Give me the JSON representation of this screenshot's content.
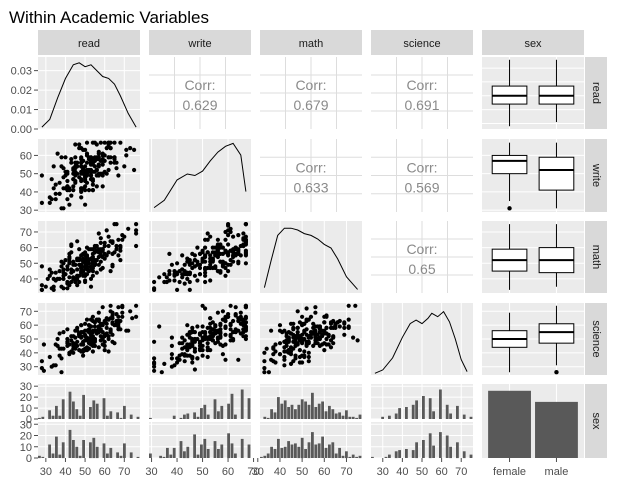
{
  "title": "Within Academic Variables",
  "variables": [
    "read",
    "write",
    "math",
    "science",
    "sex"
  ],
  "colors": {
    "panel_background": "#ebebeb",
    "grid_major": "#ffffff",
    "strip_background": "#d9d9d9",
    "strip_text": "#1a1a1a",
    "corr_text": "#8a8a8a",
    "mark": "#000000",
    "bar_fill": "#595959",
    "axis_text": "#4d4d4d"
  },
  "chart_data": {
    "type": "scatter",
    "title": "Within Academic Variables",
    "panels": {
      "read_density": {
        "type": "line",
        "x": [
          28,
          32,
          36,
          40,
          44,
          47,
          50,
          53,
          56,
          59,
          62,
          65,
          68,
          72,
          76
        ],
        "y": [
          0.001,
          0.005,
          0.016,
          0.026,
          0.033,
          0.034,
          0.032,
          0.033,
          0.03,
          0.027,
          0.026,
          0.023,
          0.017,
          0.008,
          0.001
        ],
        "ylim": [
          0,
          0.037
        ],
        "yticks": [
          "0.00",
          "0.01",
          "0.02",
          "0.03"
        ],
        "ytick_values": [
          0,
          0.01,
          0.02,
          0.03
        ]
      },
      "write_density": {
        "type": "line",
        "x": [
          31,
          35,
          40,
          44,
          47,
          50,
          53,
          56,
          59,
          62,
          65,
          67
        ],
        "y": [
          0.003,
          0.008,
          0.022,
          0.026,
          0.025,
          0.028,
          0.035,
          0.041,
          0.045,
          0.047,
          0.039,
          0.014
        ],
        "ylim": [
          0,
          0.05
        ]
      },
      "math_density": {
        "type": "line",
        "x": [
          33,
          36,
          39,
          42,
          45,
          48,
          51,
          54,
          57,
          60,
          63,
          66,
          70,
          75
        ],
        "y": [
          0.003,
          0.018,
          0.032,
          0.036,
          0.036,
          0.035,
          0.033,
          0.032,
          0.03,
          0.027,
          0.025,
          0.019,
          0.009,
          0.002
        ],
        "ylim": [
          0,
          0.04
        ]
      },
      "science_density": {
        "type": "line",
        "x": [
          26,
          30,
          35,
          40,
          44,
          47,
          50,
          53,
          55,
          58,
          61,
          64,
          67,
          70,
          73
        ],
        "y": [
          0.001,
          0.003,
          0.01,
          0.022,
          0.03,
          0.032,
          0.03,
          0.033,
          0.036,
          0.034,
          0.037,
          0.031,
          0.021,
          0.009,
          0.002
        ],
        "ylim": [
          0,
          0.042
        ]
      },
      "correlations": [
        {
          "row": "read",
          "col": "write",
          "label": "Corr:",
          "value": "0.629"
        },
        {
          "row": "read",
          "col": "math",
          "label": "Corr:",
          "value": "0.679"
        },
        {
          "row": "read",
          "col": "science",
          "label": "Corr:",
          "value": "0.691"
        },
        {
          "row": "write",
          "col": "math",
          "label": "Corr:",
          "value": "0.633"
        },
        {
          "row": "write",
          "col": "science",
          "label": "Corr:",
          "value": "0.569"
        },
        {
          "row": "math",
          "col": "science",
          "label": "Corr:",
          "value": "0.65"
        }
      ],
      "boxplots": {
        "categories": [
          "female",
          "male"
        ],
        "read": [
          {
            "min": 28,
            "q1": 44,
            "median": 50,
            "q3": 57,
            "max": 76,
            "outliers": []
          },
          {
            "min": 31,
            "q1": 44,
            "median": 50,
            "q3": 57,
            "max": 76,
            "outliers": []
          }
        ],
        "write": [
          {
            "min": 35,
            "q1": 50,
            "median": 57,
            "q3": 60,
            "max": 67,
            "outliers": [
              31
            ]
          },
          {
            "min": 31,
            "q1": 41,
            "median": 52,
            "q3": 59,
            "max": 67,
            "outliers": []
          }
        ],
        "math": [
          {
            "min": 33,
            "q1": 45,
            "median": 52,
            "q3": 59,
            "max": 75,
            "outliers": []
          },
          {
            "min": 35,
            "q1": 44,
            "median": 52,
            "q3": 60,
            "max": 75,
            "outliers": []
          }
        ],
        "science": [
          {
            "min": 26,
            "q1": 44,
            "median": 50,
            "q3": 56,
            "max": 69,
            "outliers": []
          },
          {
            "min": 31,
            "q1": 47,
            "median": 55,
            "q3": 61,
            "max": 74,
            "outliers": [
              26
            ]
          }
        ]
      },
      "sex_counts": {
        "categories": [
          "female",
          "male"
        ],
        "values": [
          109,
          91
        ],
        "ylim": [
          0,
          120
        ]
      },
      "histograms": {
        "yticks": [
          0,
          10,
          20,
          30
        ],
        "bins": 30,
        "read": {
          "female": [
            1,
            2,
            0,
            8,
            3,
            12,
            3,
            18,
            0,
            25,
            16,
            9,
            3,
            22,
            0,
            11,
            17,
            14,
            0,
            19,
            3,
            7,
            0,
            6,
            1,
            12,
            0,
            4,
            0,
            2
          ],
          "male": [
            2,
            1,
            0,
            12,
            4,
            19,
            3,
            14,
            0,
            25,
            16,
            10,
            2,
            16,
            0,
            14,
            18,
            10,
            0,
            13,
            4,
            9,
            0,
            5,
            2,
            13,
            0,
            5,
            0,
            1
          ]
        },
        "write": {
          "female": [
            1,
            0,
            0,
            0,
            0,
            0,
            0,
            3,
            0,
            1,
            4,
            5,
            0,
            6,
            2,
            10,
            13,
            4,
            0,
            18,
            7,
            12,
            0,
            14,
            23,
            4,
            0,
            27,
            0,
            19
          ],
          "male": [
            4,
            0,
            0,
            2,
            1,
            9,
            3,
            9,
            0,
            15,
            6,
            10,
            0,
            21,
            3,
            12,
            17,
            8,
            0,
            15,
            8,
            12,
            0,
            22,
            13,
            4,
            0,
            17,
            0,
            12
          ]
        },
        "math": {
          "female": [
            0,
            2,
            1,
            9,
            6,
            20,
            14,
            17,
            11,
            13,
            9,
            13,
            18,
            16,
            13,
            24,
            11,
            14,
            16,
            7,
            12,
            9,
            5,
            6,
            3,
            8,
            2,
            2,
            1,
            4
          ],
          "male": [
            1,
            2,
            4,
            10,
            8,
            17,
            9,
            10,
            15,
            12,
            13,
            10,
            18,
            8,
            14,
            23,
            12,
            13,
            19,
            9,
            12,
            14,
            4,
            9,
            2,
            6,
            1,
            3,
            1,
            2
          ]
        },
        "science": {
          "female": [
            0,
            0,
            0,
            2,
            0,
            3,
            0,
            5,
            10,
            0,
            11,
            0,
            13,
            17,
            0,
            21,
            0,
            19,
            7,
            0,
            27,
            0,
            13,
            5,
            0,
            12,
            0,
            4,
            0,
            2
          ],
          "male": [
            1,
            0,
            0,
            0,
            1,
            3,
            0,
            6,
            7,
            0,
            8,
            0,
            7,
            14,
            0,
            16,
            0,
            22,
            11,
            0,
            23,
            0,
            20,
            10,
            0,
            14,
            0,
            6,
            0,
            3
          ]
        }
      }
    },
    "axes": {
      "read": {
        "range": [
          26,
          78
        ],
        "ticks": [
          30,
          40,
          50,
          60,
          70
        ]
      },
      "write": {
        "range": [
          29,
          69
        ],
        "ticks": [
          30,
          40,
          50,
          60
        ]
      },
      "math": {
        "range": [
          31,
          77
        ],
        "ticks": [
          40,
          50,
          60,
          70
        ]
      },
      "science": {
        "range": [
          24,
          76
        ],
        "ticks": [
          30,
          40,
          50,
          60,
          70
        ]
      },
      "x_tick_labels": {
        "read": [
          "30",
          "40",
          "50",
          "60",
          "70"
        ],
        "write": [
          "30",
          "40",
          "50",
          "60",
          "70"
        ],
        "math": [
          "30",
          "40",
          "50",
          "60",
          "70"
        ],
        "science": [
          "30",
          "40",
          "50",
          "60",
          "70"
        ],
        "sex": [
          "female",
          "male"
        ]
      },
      "x_tick_values": {
        "read": [
          30,
          40,
          50,
          60,
          70
        ],
        "write": [
          30,
          40,
          50,
          60,
          70
        ],
        "math": [
          30,
          40,
          50,
          60,
          70
        ],
        "science": [
          30,
          40,
          50,
          60,
          70
        ]
      },
      "y_tick_labels": {
        "read": [
          "0.00",
          "0.01",
          "0.02",
          "0.03"
        ],
        "write": [
          "30",
          "40",
          "50",
          "60"
        ],
        "math": [
          "40",
          "50",
          "60",
          "70"
        ],
        "science": [
          "30",
          "40",
          "50",
          "60",
          "70"
        ],
        "sex_female": [
          "0",
          "10",
          "20",
          "30"
        ],
        "sex_male": [
          "0",
          "10",
          "20",
          "30"
        ]
      }
    }
  }
}
